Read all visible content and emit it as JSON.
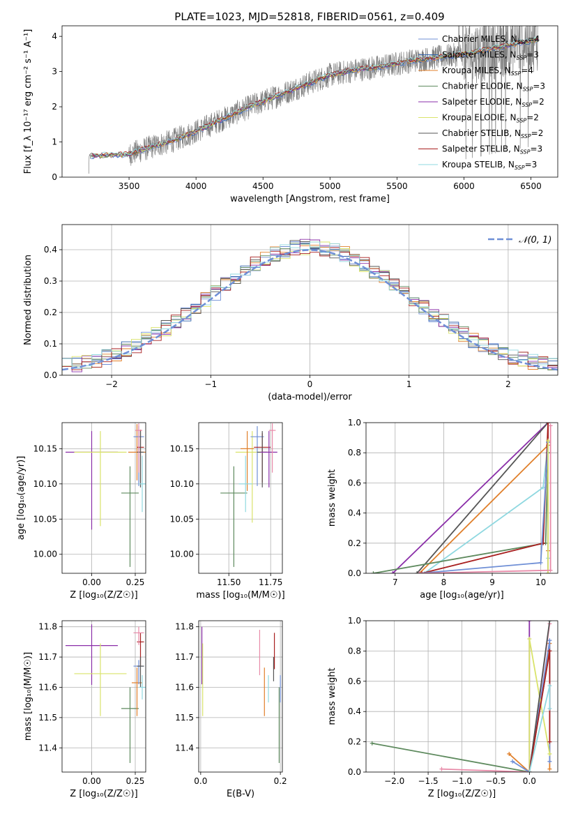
{
  "title": "PLATE=1023, MJD=52818, FIBERID=0561, z=0.409",
  "colors": {
    "chabrier_miles": "#6f8fd6",
    "salpeter_miles": "#2f5faa",
    "kroupa_miles": "#e07f2a",
    "chabrier_elodie": "#5e8a5e",
    "salpeter_elodie": "#8a2ea8",
    "kroupa_elodie": "#d9e36a",
    "chabrier_stelib": "#555555",
    "salpeter_stelib": "#a81f1f",
    "kroupa_stelib": "#8fd8e0",
    "pink": "#e88aa8",
    "data": "#808080"
  },
  "chart_data": [
    {
      "id": "spectrum",
      "type": "line",
      "xlabel": "wavelength [Angstrom, rest frame]",
      "ylabel": "Flux [f_λ 10⁻¹⁷ erg cm⁻² s⁻¹ A⁻¹]",
      "xlim": [
        3000,
        6700
      ],
      "ylim": [
        0,
        4.3
      ],
      "xticks": [
        3500,
        4000,
        4500,
        5000,
        5500,
        6000,
        6500
      ],
      "yticks": [
        0,
        1,
        2,
        3,
        4
      ],
      "legend": "top-right",
      "continuum_x": [
        3200,
        3500,
        3700,
        3800,
        4000,
        4200,
        4400,
        4600,
        4800,
        5000,
        5200,
        5400,
        5600,
        5800,
        6000,
        6200,
        6400,
        6550
      ],
      "continuum_y": [
        0.6,
        0.65,
        0.9,
        1.0,
        1.3,
        1.65,
        2.0,
        2.3,
        2.6,
        2.9,
        3.05,
        3.15,
        3.3,
        3.4,
        3.5,
        3.65,
        3.8,
        3.9
      ],
      "series": [
        {
          "name": "Chabrier MILES, N_SSP=4",
          "color_key": "chabrier_miles"
        },
        {
          "name": "Salpeter MILES, N_SSP=3",
          "color_key": "salpeter_miles"
        },
        {
          "name": "Kroupa MILES, N_SSP=4",
          "color_key": "kroupa_miles"
        },
        {
          "name": "Chabrier ELODIE, N_SSP=3",
          "color_key": "chabrier_elodie"
        },
        {
          "name": "Salpeter ELODIE, N_SSP=2",
          "color_key": "salpeter_elodie"
        },
        {
          "name": "Kroupa ELODIE, N_SSP=2",
          "color_key": "kroupa_elodie"
        },
        {
          "name": "Chabrier STELIB, N_SSP=2",
          "color_key": "chabrier_stelib"
        },
        {
          "name": "Salpeter STELIB, N_SSP=3",
          "color_key": "salpeter_stelib"
        },
        {
          "name": "Kroupa STELIB, N_SSP=3",
          "color_key": "kroupa_stelib"
        }
      ]
    },
    {
      "id": "residuals",
      "type": "histogram",
      "xlabel": "(data-model)/error",
      "ylabel": "Normed distribution",
      "xlim": [
        -2.5,
        2.5
      ],
      "ylim": [
        0,
        0.48
      ],
      "xticks": [
        -2,
        -1,
        0,
        1,
        2
      ],
      "yticks": [
        0.0,
        0.1,
        0.2,
        0.3,
        0.4
      ],
      "grid": true,
      "legend": "top-right",
      "reference_curve": "𝒩(0, 1)",
      "bin_width": 0.1
    },
    {
      "id": "age_vs_Z",
      "type": "errorbar",
      "xlabel": "Z [log₁₀(Z/Z☉)]",
      "ylabel": "age  [log₁₀(age/yr)]",
      "xlim": [
        -0.17,
        0.31
      ],
      "ylim": [
        9.973,
        10.187
      ],
      "xticks": [
        0.0,
        0.25
      ],
      "yticks": [
        10.0,
        10.05,
        10.1,
        10.15
      ],
      "grid": true,
      "points": [
        {
          "x": 0.0,
          "y": 10.145,
          "xerr": 0.15,
          "yerr": [
            0.11,
            0.03
          ],
          "color_key": "salpeter_elodie"
        },
        {
          "x": 0.05,
          "y": 10.145,
          "xerr": 0.15,
          "yerr": [
            0.105,
            0.03
          ],
          "color_key": "kroupa_elodie"
        },
        {
          "x": 0.22,
          "y": 10.087,
          "xerr": 0.05,
          "yerr": [
            0.105,
            0.038
          ],
          "color_key": "chabrier_elodie"
        },
        {
          "x": 0.26,
          "y": 10.145,
          "xerr": 0.05,
          "yerr": [
            0.04,
            0.04
          ],
          "color_key": "kroupa_miles"
        },
        {
          "x": 0.27,
          "y": 10.167,
          "xerr": 0.03,
          "yerr": [
            0.07,
            0.015
          ],
          "color_key": "chabrier_miles"
        },
        {
          "x": 0.28,
          "y": 10.152,
          "xerr": 0.02,
          "yerr": [
            0.05,
            0.025
          ],
          "color_key": "salpeter_stelib"
        },
        {
          "x": 0.28,
          "y": 10.145,
          "xerr": 0.02,
          "yerr": [
            0.05,
            0.03
          ],
          "color_key": "chabrier_stelib"
        },
        {
          "x": 0.29,
          "y": 10.1,
          "xerr": 0.02,
          "yerr": [
            0.04,
            0.04
          ],
          "color_key": "kroupa_stelib"
        },
        {
          "x": 0.27,
          "y": 10.176,
          "xerr": 0.02,
          "yerr": [
            0.06,
            0.01
          ],
          "color_key": "pink"
        }
      ]
    },
    {
      "id": "age_vs_mass",
      "type": "errorbar",
      "xlabel": "mass [log₁₀(M/M☉)]",
      "ylabel": "",
      "xlim": [
        11.32,
        11.82
      ],
      "ylim": [
        9.973,
        10.187
      ],
      "xticks": [
        11.5,
        11.75
      ],
      "yticks": [
        10.0,
        10.05,
        10.1,
        10.15
      ],
      "grid": true,
      "points": [
        {
          "x": 11.53,
          "y": 10.087,
          "xerr": 0.08,
          "yerr": [
            0.105,
            0.038
          ],
          "color_key": "chabrier_elodie"
        },
        {
          "x": 11.64,
          "y": 10.145,
          "xerr": 0.1,
          "yerr": [
            0.1,
            0.03
          ],
          "color_key": "kroupa_elodie"
        },
        {
          "x": 11.61,
          "y": 10.15,
          "xerr": 0.04,
          "yerr": [
            0.06,
            0.025
          ],
          "color_key": "kroupa_miles"
        },
        {
          "x": 11.67,
          "y": 10.167,
          "xerr": 0.04,
          "yerr": [
            0.07,
            0.015
          ],
          "color_key": "chabrier_miles"
        },
        {
          "x": 11.6,
          "y": 10.1,
          "xerr": 0.04,
          "yerr": [
            0.04,
            0.04
          ],
          "color_key": "kroupa_stelib"
        },
        {
          "x": 11.7,
          "y": 10.152,
          "xerr": 0.05,
          "yerr": [
            0.05,
            0.02
          ],
          "color_key": "salpeter_stelib"
        },
        {
          "x": 11.7,
          "y": 10.145,
          "xerr": 0.03,
          "yerr": [
            0.05,
            0.03
          ],
          "color_key": "chabrier_stelib"
        },
        {
          "x": 11.74,
          "y": 10.145,
          "xerr": 0.05,
          "yerr": [
            0.05,
            0.03
          ],
          "color_key": "salpeter_elodie"
        },
        {
          "x": 11.76,
          "y": 10.176,
          "xerr": 0.02,
          "yerr": [
            0.06,
            0.01
          ],
          "color_key": "pink"
        }
      ]
    },
    {
      "id": "weight_vs_age",
      "type": "line",
      "xlabel": "age  [log₁₀(age/yr)]",
      "ylabel": "mass weight",
      "xlim": [
        6.4,
        10.35
      ],
      "ylim": [
        0,
        1
      ],
      "xticks": [
        7,
        8,
        9,
        10
      ],
      "yticks": [
        0.0,
        0.2,
        0.4,
        0.6,
        0.8,
        1.0
      ],
      "grid": true,
      "series": [
        {
          "color_key": "salpeter_elodie",
          "x": [
            6.95,
            10.15
          ],
          "y": [
            0.0,
            1.0
          ]
        },
        {
          "color_key": "chabrier_stelib",
          "x": [
            7.45,
            10.15
          ],
          "y": [
            0.0,
            1.0
          ]
        },
        {
          "color_key": "kroupa_miles",
          "x": [
            7.5,
            10.15,
            10.15
          ],
          "y": [
            0.0,
            0.85,
            0.15
          ]
        },
        {
          "color_key": "kroupa_stelib",
          "x": [
            7.6,
            10.05,
            10.15,
            10.15
          ],
          "y": [
            0.0,
            0.57,
            0.87,
            0.1
          ]
        },
        {
          "color_key": "chabrier_elodie",
          "x": [
            6.55,
            10.1,
            10.15
          ],
          "y": [
            0.0,
            0.2,
            0.8
          ]
        },
        {
          "color_key": "salpeter_stelib",
          "x": [
            7.55,
            10.05,
            10.15,
            10.15
          ],
          "y": [
            0.0,
            0.2,
            1.0,
            0.0
          ]
        },
        {
          "color_key": "chabrier_miles",
          "x": [
            7.5,
            10.0,
            10.15,
            10.15
          ],
          "y": [
            0.0,
            0.07,
            0.87,
            0.0
          ]
        },
        {
          "color_key": "kroupa_elodie",
          "x": [
            10.15,
            10.15
          ],
          "y": [
            0.0,
            0.88
          ]
        },
        {
          "color_key": "pink",
          "x": [
            7.5,
            10.2,
            10.2
          ],
          "y": [
            0.0,
            0.02,
            0.98
          ]
        }
      ]
    },
    {
      "id": "mass_vs_Z",
      "type": "errorbar",
      "xlabel": "Z [log₁₀(Z/Z☉)]",
      "ylabel": "mass [log₁₀(M/M☉)]",
      "xlim": [
        -0.17,
        0.31
      ],
      "ylim": [
        11.32,
        11.82
      ],
      "xticks": [
        0.0,
        0.25
      ],
      "yticks": [
        11.4,
        11.5,
        11.6,
        11.7,
        11.8
      ],
      "grid": true,
      "points": [
        {
          "x": 0.0,
          "y": 11.738,
          "xerr": 0.15,
          "yerr": [
            0.13,
            0.07
          ],
          "color_key": "salpeter_elodie"
        },
        {
          "x": 0.05,
          "y": 11.645,
          "xerr": 0.15,
          "yerr": [
            0.14,
            0.1
          ],
          "color_key": "kroupa_elodie"
        },
        {
          "x": 0.22,
          "y": 11.53,
          "xerr": 0.05,
          "yerr": [
            0.18,
            0.07
          ],
          "color_key": "chabrier_elodie"
        },
        {
          "x": 0.26,
          "y": 11.615,
          "xerr": 0.03,
          "yerr": [
            0.11,
            0.05
          ],
          "color_key": "kroupa_miles"
        },
        {
          "x": 0.27,
          "y": 11.67,
          "xerr": 0.03,
          "yerr": [
            0.06,
            0.02
          ],
          "color_key": "chabrier_miles"
        },
        {
          "x": 0.28,
          "y": 11.75,
          "xerr": 0.02,
          "yerr": [
            0.08,
            0.03
          ],
          "color_key": "salpeter_stelib"
        },
        {
          "x": 0.28,
          "y": 11.67,
          "xerr": 0.02,
          "yerr": [
            0.07,
            0.03
          ],
          "color_key": "chabrier_stelib"
        },
        {
          "x": 0.29,
          "y": 11.6,
          "xerr": 0.02,
          "yerr": [
            0.04,
            0.04
          ],
          "color_key": "kroupa_stelib"
        },
        {
          "x": 0.27,
          "y": 11.78,
          "xerr": 0.03,
          "yerr": [
            0.04,
            0.02
          ],
          "color_key": "pink"
        }
      ]
    },
    {
      "id": "mass_vs_ebv",
      "type": "errorbar",
      "xlabel": "E(B-V)",
      "ylabel": "",
      "xlim": [
        -0.005,
        0.205
      ],
      "ylim": [
        11.32,
        11.82
      ],
      "xticks": [
        0.0,
        0.2
      ],
      "yticks": [
        11.4,
        11.5,
        11.6,
        11.7,
        11.8
      ],
      "grid": true,
      "points": [
        {
          "x": 0.003,
          "y": 11.74,
          "xerr": 0.0,
          "yerr": [
            0.13,
            0.06
          ],
          "color_key": "salpeter_elodie"
        },
        {
          "x": 0.005,
          "y": 11.645,
          "xerr": 0.0,
          "yerr": [
            0.14,
            0.1
          ],
          "color_key": "kroupa_elodie"
        },
        {
          "x": 0.148,
          "y": 11.74,
          "xerr": 0.0,
          "yerr": [
            0.1,
            0.05
          ],
          "color_key": "pink"
        },
        {
          "x": 0.16,
          "y": 11.615,
          "xerr": 0.0,
          "yerr": [
            0.11,
            0.05
          ],
          "color_key": "kroupa_miles"
        },
        {
          "x": 0.17,
          "y": 11.6,
          "xerr": 0.0,
          "yerr": [
            0.05,
            0.04
          ],
          "color_key": "kroupa_stelib"
        },
        {
          "x": 0.183,
          "y": 11.67,
          "xerr": 0.0,
          "yerr": [
            0.05,
            0.03
          ],
          "color_key": "chabrier_stelib"
        },
        {
          "x": 0.185,
          "y": 11.73,
          "xerr": 0.0,
          "yerr": [
            0.07,
            0.05
          ],
          "color_key": "salpeter_stelib"
        },
        {
          "x": 0.197,
          "y": 11.53,
          "xerr": 0.0,
          "yerr": [
            0.18,
            0.07
          ],
          "color_key": "chabrier_elodie"
        },
        {
          "x": 0.2,
          "y": 11.6,
          "xerr": 0.0,
          "yerr": [
            0.05,
            0.04
          ],
          "color_key": "chabrier_miles"
        }
      ]
    },
    {
      "id": "weight_vs_Z",
      "type": "line",
      "xlabel": "Z [log₁₀(Z/Z☉)]",
      "ylabel": "mass weight",
      "xlim": [
        -2.42,
        0.42
      ],
      "ylim": [
        0,
        1
      ],
      "xticks": [
        -2.0,
        -1.5,
        -1.0,
        -0.5,
        0.0
      ],
      "yticks": [
        0.0,
        0.2,
        0.4,
        0.6,
        0.8,
        1.0
      ],
      "grid": true,
      "series": [
        {
          "color_key": "chabrier_elodie",
          "x": [
            -2.33,
            0.0,
            0.3
          ],
          "y": [
            0.19,
            0.0,
            0.8
          ]
        },
        {
          "color_key": "pink",
          "x": [
            -1.3,
            0.0,
            0.3
          ],
          "y": [
            0.02,
            0.0,
            0.98
          ]
        },
        {
          "color_key": "kroupa_miles",
          "x": [
            -0.3,
            0.0,
            0.3,
            0.3
          ],
          "y": [
            0.12,
            0.0,
            0.85,
            0.02
          ]
        },
        {
          "color_key": "chabrier_miles",
          "x": [
            -0.25,
            0.0,
            0.3,
            0.3
          ],
          "y": [
            0.07,
            0.0,
            0.87,
            0.07
          ]
        },
        {
          "color_key": "salpeter_elodie",
          "x": [
            0.0,
            0.0
          ],
          "y": [
            0.0,
            1.0
          ]
        },
        {
          "color_key": "kroupa_elodie",
          "x": [
            0.0,
            0.0,
            0.3
          ],
          "y": [
            0.0,
            0.88,
            0.12
          ]
        },
        {
          "color_key": "chabrier_stelib",
          "x": [
            0.0,
            0.3
          ],
          "y": [
            0.0,
            1.0
          ]
        },
        {
          "color_key": "salpeter_stelib",
          "x": [
            0.0,
            0.3,
            0.3
          ],
          "y": [
            0.0,
            0.8,
            0.2
          ]
        },
        {
          "color_key": "kroupa_stelib",
          "x": [
            0.0,
            0.3,
            0.3
          ],
          "y": [
            0.0,
            0.57,
            0.42
          ]
        }
      ]
    }
  ]
}
